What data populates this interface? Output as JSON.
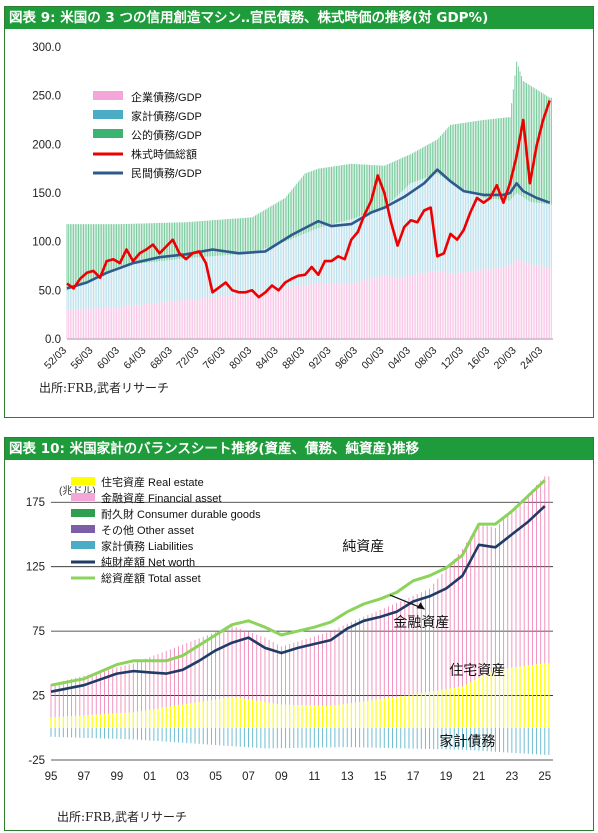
{
  "chart_data": [
    {
      "type": "area",
      "title": "図表 9: 米国の 3 つの信用創造マシン‥官民債務、株式時価の推移(対 GDP%)",
      "ylim": [
        0,
        300
      ],
      "yticks": [
        "0.0",
        "50.0",
        "100.0",
        "150.0",
        "200.0",
        "250.0",
        "300.0"
      ],
      "xticks": [
        "52/03",
        "56/03",
        "60/03",
        "64/03",
        "68/03",
        "72/03",
        "76/03",
        "80/03",
        "84/03",
        "88/03",
        "92/03",
        "96/03",
        "00/03",
        "04/03",
        "08/03",
        "12/03",
        "16/03",
        "20/03",
        "24/03"
      ],
      "x_range": [
        1952,
        2025.5
      ],
      "legend_position": "top-left",
      "series": [
        {
          "name": "企業債務/GDP",
          "color": "#f4a6d8",
          "kind": "bar",
          "points": [
            [
              1952,
              30
            ],
            [
              1960,
              33
            ],
            [
              1970,
              40
            ],
            [
              1980,
              47
            ],
            [
              1985,
              53
            ],
            [
              1990,
              57
            ],
            [
              1995,
              57
            ],
            [
              2000,
              65
            ],
            [
              2002,
              63
            ],
            [
              2008,
              70
            ],
            [
              2010,
              67
            ],
            [
              2015,
              71
            ],
            [
              2019,
              75
            ],
            [
              2020,
              82
            ],
            [
              2022,
              77
            ],
            [
              2025,
              73
            ]
          ]
        },
        {
          "name": "家計債務/GDP",
          "color": "#4bacc6",
          "kind": "bar",
          "points": [
            [
              1952,
              50
            ],
            [
              1960,
              75
            ],
            [
              1970,
              83
            ],
            [
              1980,
              88
            ],
            [
              1985,
              100
            ],
            [
              1990,
              114
            ],
            [
              1995,
              123
            ],
            [
              2000,
              135
            ],
            [
              2004,
              160
            ],
            [
              2008,
              170
            ],
            [
              2010,
              160
            ],
            [
              2015,
              145
            ],
            [
              2019,
              142
            ],
            [
              2020,
              150
            ],
            [
              2022,
              141
            ],
            [
              2025,
              138
            ]
          ]
        },
        {
          "name": "公的債務/GDP",
          "color": "#3cb371",
          "kind": "bar",
          "points": [
            [
              1952,
              118
            ],
            [
              1960,
              118
            ],
            [
              1970,
              120
            ],
            [
              1980,
              125
            ],
            [
              1985,
              145
            ],
            [
              1988,
              170
            ],
            [
              1990,
              175
            ],
            [
              1995,
              180
            ],
            [
              2000,
              178
            ],
            [
              2004,
              190
            ],
            [
              2008,
              205
            ],
            [
              2010,
              220
            ],
            [
              2015,
              225
            ],
            [
              2019,
              228
            ],
            [
              2020,
              285
            ],
            [
              2021,
              265
            ],
            [
              2025,
              248
            ]
          ]
        },
        {
          "name": "株式時価総額",
          "color": "#ee0000",
          "kind": "line",
          "points": [
            [
              1952,
              57
            ],
            [
              1953,
              52
            ],
            [
              1954,
              62
            ],
            [
              1955,
              68
            ],
            [
              1956,
              70
            ],
            [
              1957,
              63
            ],
            [
              1958,
              80
            ],
            [
              1959,
              82
            ],
            [
              1960,
              78
            ],
            [
              1961,
              92
            ],
            [
              1962,
              80
            ],
            [
              1963,
              88
            ],
            [
              1964,
              92
            ],
            [
              1965,
              97
            ],
            [
              1966,
              88
            ],
            [
              1967,
              95
            ],
            [
              1968,
              102
            ],
            [
              1969,
              88
            ],
            [
              1970,
              82
            ],
            [
              1971,
              88
            ],
            [
              1972,
              90
            ],
            [
              1973,
              78
            ],
            [
              1974,
              48
            ],
            [
              1975,
              53
            ],
            [
              1976,
              58
            ],
            [
              1977,
              50
            ],
            [
              1978,
              48
            ],
            [
              1979,
              48
            ],
            [
              1980,
              50
            ],
            [
              1981,
              43
            ],
            [
              1982,
              48
            ],
            [
              1983,
              55
            ],
            [
              1984,
              50
            ],
            [
              1985,
              58
            ],
            [
              1986,
              62
            ],
            [
              1987,
              65
            ],
            [
              1988,
              66
            ],
            [
              1989,
              74
            ],
            [
              1990,
              66
            ],
            [
              1991,
              80
            ],
            [
              1992,
              80
            ],
            [
              1993,
              85
            ],
            [
              1994,
              82
            ],
            [
              1995,
              102
            ],
            [
              1996,
              110
            ],
            [
              1997,
              128
            ],
            [
              1998,
              142
            ],
            [
              1999,
              168
            ],
            [
              2000,
              150
            ],
            [
              2001,
              120
            ],
            [
              2002,
              96
            ],
            [
              2003,
              115
            ],
            [
              2004,
              122
            ],
            [
              2005,
              120
            ],
            [
              2006,
              132
            ],
            [
              2007,
              135
            ],
            [
              2008,
              85
            ],
            [
              2009,
              88
            ],
            [
              2010,
              108
            ],
            [
              2011,
              102
            ],
            [
              2012,
              112
            ],
            [
              2013,
              130
            ],
            [
              2014,
              145
            ],
            [
              2015,
              140
            ],
            [
              2016,
              145
            ],
            [
              2017,
              158
            ],
            [
              2018,
              140
            ],
            [
              2019,
              160
            ],
            [
              2020,
              188
            ],
            [
              2021,
              225
            ],
            [
              2022,
              160
            ],
            [
              2023,
              198
            ],
            [
              2024,
              225
            ],
            [
              2025,
              245
            ]
          ]
        },
        {
          "name": "民間債務/GDP",
          "color": "#2e5b8c",
          "kind": "line",
          "points": [
            [
              1952,
              52
            ],
            [
              1955,
              58
            ],
            [
              1958,
              68
            ],
            [
              1962,
              78
            ],
            [
              1966,
              84
            ],
            [
              1970,
              87
            ],
            [
              1974,
              92
            ],
            [
              1978,
              88
            ],
            [
              1982,
              90
            ],
            [
              1986,
              107
            ],
            [
              1988,
              114
            ],
            [
              1990,
              121
            ],
            [
              1992,
              116
            ],
            [
              1995,
              118
            ],
            [
              1998,
              130
            ],
            [
              2000,
              135
            ],
            [
              2003,
              146
            ],
            [
              2006,
              160
            ],
            [
              2008,
              174
            ],
            [
              2010,
              162
            ],
            [
              2012,
              152
            ],
            [
              2015,
              148
            ],
            [
              2018,
              148
            ],
            [
              2019,
              150
            ],
            [
              2020,
              160
            ],
            [
              2021,
              152
            ],
            [
              2023,
              145
            ],
            [
              2025,
              140
            ]
          ]
        }
      ]
    },
    {
      "type": "area",
      "title": "図表 10: 米国家計のバランスシート推移(資産、債務、純資産)推移",
      "ylabel": "(兆ドル)",
      "ylim": [
        -25,
        200
      ],
      "yticks": [
        "-25",
        "25",
        "75",
        "125",
        "175"
      ],
      "ytick_values": [
        -25,
        25,
        75,
        125,
        175
      ],
      "xticks": [
        "95",
        "97",
        "99",
        "01",
        "03",
        "05",
        "07",
        "09",
        "11",
        "13",
        "15",
        "17",
        "19",
        "21",
        "23",
        "25"
      ],
      "x_range": [
        1995,
        2025.5
      ],
      "legend_position": "top-left",
      "annotations": [
        "純資産",
        "金融資産",
        "住宅資産",
        "家計債務"
      ],
      "series": [
        {
          "name": "住宅資産 Real estate",
          "color": "#ffff00",
          "kind": "bar",
          "points": [
            [
              1995,
              8
            ],
            [
              2000,
              12
            ],
            [
              2006,
              24
            ],
            [
              2009,
              18
            ],
            [
              2012,
              17
            ],
            [
              2016,
              24
            ],
            [
              2020,
              32
            ],
            [
              2022,
              45
            ],
            [
              2025,
              50
            ]
          ]
        },
        {
          "name": "金融資産 Financial asset",
          "color": "#f4a6d8",
          "kind": "bar",
          "points": [
            [
              1995,
              26
            ],
            [
              2000,
              38
            ],
            [
              2006,
              55
            ],
            [
              2008,
              50
            ],
            [
              2009,
              45
            ],
            [
              2013,
              62
            ],
            [
              2018,
              80
            ],
            [
              2021,
              120
            ],
            [
              2022,
              110
            ],
            [
              2025,
              145
            ]
          ]
        },
        {
          "name": "耐久財 Consumer durable goods",
          "color": "#2e9e4f",
          "kind": "bar",
          "points": []
        },
        {
          "name": "その他 Other asset",
          "color": "#7b5ea7",
          "kind": "bar",
          "points": []
        },
        {
          "name": "家計債務 Liabilities",
          "color": "#4bacc6",
          "kind": "bar",
          "points": [
            [
              1995,
              -7
            ],
            [
              2000,
              -9
            ],
            [
              2008,
              -16
            ],
            [
              2013,
              -15
            ],
            [
              2020,
              -17
            ],
            [
              2025,
              -21
            ]
          ]
        },
        {
          "name": "純財産額 Net worth",
          "color": "#1f3b66",
          "kind": "line",
          "points": [
            [
              1995,
              28
            ],
            [
              1997,
              33
            ],
            [
              1999,
              42
            ],
            [
              2000,
              44
            ],
            [
              2001,
              43
            ],
            [
              2002,
              42
            ],
            [
              2003,
              45
            ],
            [
              2004,
              52
            ],
            [
              2005,
              60
            ],
            [
              2006,
              66
            ],
            [
              2007,
              70
            ],
            [
              2008,
              62
            ],
            [
              2009,
              58
            ],
            [
              2010,
              62
            ],
            [
              2011,
              65
            ],
            [
              2012,
              68
            ],
            [
              2013,
              77
            ],
            [
              2014,
              83
            ],
            [
              2015,
              86
            ],
            [
              2016,
              90
            ],
            [
              2017,
              98
            ],
            [
              2018,
              102
            ],
            [
              2019,
              108
            ],
            [
              2020,
              118
            ],
            [
              2021,
              142
            ],
            [
              2022,
              140
            ],
            [
              2023,
              150
            ],
            [
              2024,
              160
            ],
            [
              2025,
              172
            ]
          ]
        },
        {
          "name": "総資産額 Total asset",
          "color": "#8bd35a",
          "kind": "line",
          "points": [
            [
              1995,
              33
            ],
            [
              1997,
              38
            ],
            [
              1999,
              49
            ],
            [
              2000,
              52
            ],
            [
              2001,
              52
            ],
            [
              2002,
              52
            ],
            [
              2003,
              56
            ],
            [
              2004,
              64
            ],
            [
              2005,
              72
            ],
            [
              2006,
              80
            ],
            [
              2007,
              83
            ],
            [
              2008,
              78
            ],
            [
              2009,
              72
            ],
            [
              2010,
              75
            ],
            [
              2011,
              78
            ],
            [
              2012,
              82
            ],
            [
              2013,
              90
            ],
            [
              2014,
              96
            ],
            [
              2015,
              100
            ],
            [
              2016,
              105
            ],
            [
              2017,
              114
            ],
            [
              2018,
              118
            ],
            [
              2019,
              124
            ],
            [
              2020,
              134
            ],
            [
              2021,
              158
            ],
            [
              2022,
              158
            ],
            [
              2023,
              168
            ],
            [
              2024,
              180
            ],
            [
              2025,
              192
            ]
          ]
        }
      ]
    }
  ],
  "sources": [
    "出所:FRB,武者リサーチ",
    "出所:FRB,武者リサーチ"
  ]
}
